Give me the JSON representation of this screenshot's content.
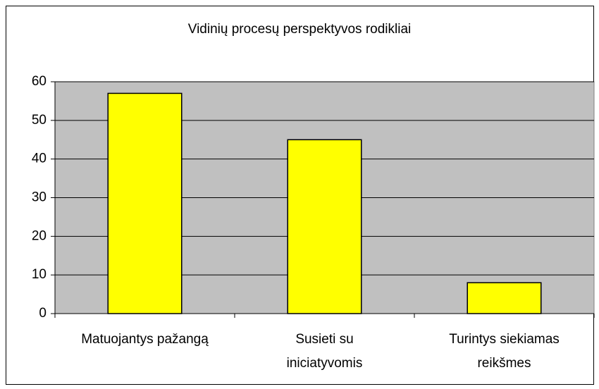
{
  "chart_data": {
    "type": "bar",
    "title": "Vidinių procesų perspektyvos rodikliai",
    "categories": [
      "Matuojantys pažangą",
      "Susieti su\niniciatyvomis",
      "Turintys siekiamas\nreikšmes"
    ],
    "values": [
      57,
      45,
      8
    ],
    "color": "#ffff00",
    "ylim": [
      0,
      60
    ],
    "yticks": [
      0,
      10,
      20,
      30,
      40,
      50,
      60
    ],
    "grid": true
  }
}
